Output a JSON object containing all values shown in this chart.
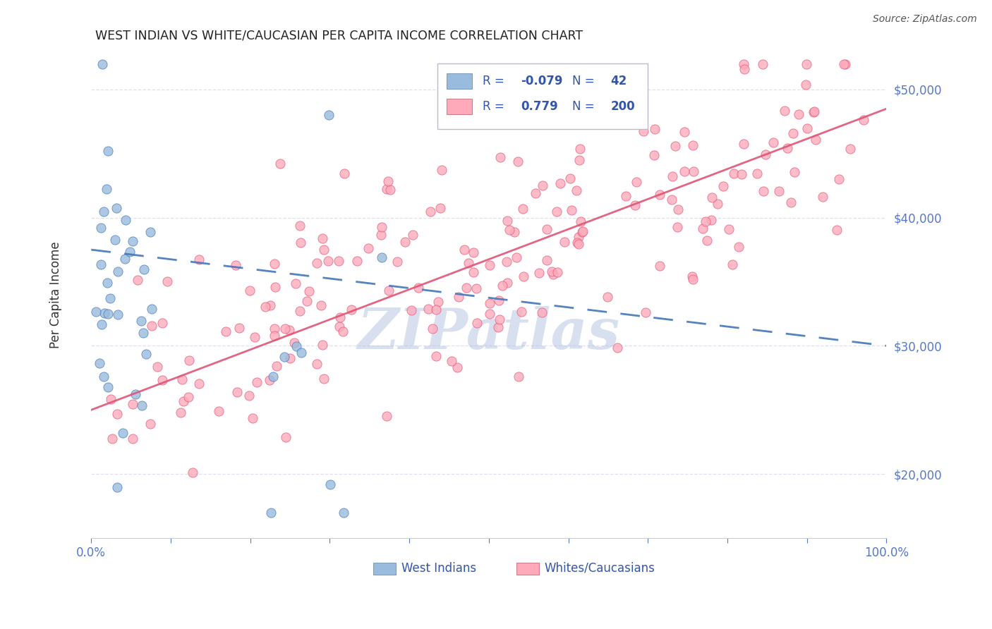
{
  "title": "WEST INDIAN VS WHITE/CAUCASIAN PER CAPITA INCOME CORRELATION CHART",
  "source": "Source: ZipAtlas.com",
  "ylabel": "Per Capita Income",
  "y_ticks": [
    20000,
    30000,
    40000,
    50000
  ],
  "y_tick_labels": [
    "$20,000",
    "$30,000",
    "$40,000",
    "$50,000"
  ],
  "xmin": 0.0,
  "xmax": 1.0,
  "ymin": 15000,
  "ymax": 53000,
  "west_indian_R": -0.079,
  "west_indian_N": 42,
  "white_R": 0.779,
  "white_N": 200,
  "blue_color": "#99BBDD",
  "pink_color": "#FFAABB",
  "blue_line_color": "#4477BB",
  "pink_line_color": "#DD5577",
  "axis_color": "#5577CC",
  "legend_R_color": "#3355AA",
  "watermark_color": "#AABBDD",
  "grid_color": "#DDDDEE",
  "west_indian_seed": 42,
  "white_seed": 7
}
